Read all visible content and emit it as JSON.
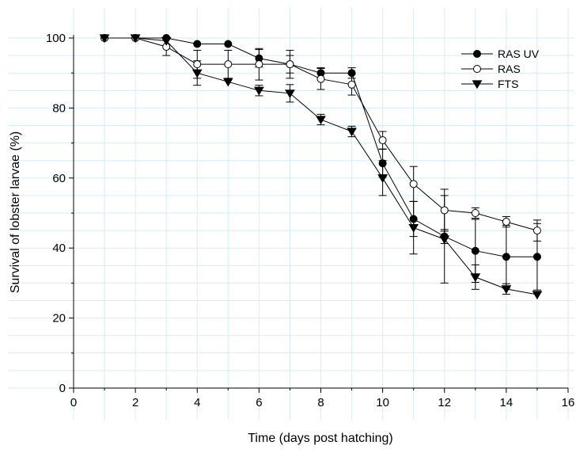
{
  "chart_data": {
    "type": "line",
    "title": "",
    "xlabel": "Time (days post hatching)",
    "ylabel": "Survival of lobster larvae (%)",
    "xlim": [
      0,
      16
    ],
    "ylim": [
      0,
      100
    ],
    "xticks": [
      0,
      2,
      4,
      6,
      8,
      10,
      12,
      14,
      16
    ],
    "yticks": [
      0,
      20,
      40,
      60,
      80,
      100
    ],
    "grid": true,
    "grid_color": "#d6ecf8",
    "legend_position": "top-right",
    "series": [
      {
        "name": "RAS UV",
        "marker": "filled-circle",
        "x": [
          1,
          2,
          3,
          4,
          5,
          6,
          7,
          8,
          9,
          10,
          11,
          12,
          13,
          14,
          15
        ],
        "y": [
          100,
          100,
          100,
          98.3,
          98.3,
          94.2,
          92.5,
          90,
          90,
          64.2,
          48.3,
          43.3,
          39.2,
          37.5,
          37.5
        ],
        "err": [
          0,
          0,
          0,
          0,
          0,
          2.5,
          2.5,
          1.5,
          1.5,
          4,
          5,
          2,
          9,
          9,
          9.5
        ]
      },
      {
        "name": "RAS",
        "marker": "open-circle",
        "x": [
          1,
          2,
          3,
          4,
          5,
          6,
          7,
          8,
          9,
          10,
          11,
          12,
          13,
          14,
          15
        ],
        "y": [
          100,
          100,
          97.5,
          92.5,
          92.5,
          92.5,
          92.5,
          88.3,
          86.7,
          70.8,
          58.3,
          50.8,
          50,
          47.5,
          45
        ],
        "err": [
          0,
          0,
          2.5,
          4,
          4,
          4.5,
          4,
          3,
          3,
          2.5,
          5,
          6,
          1.5,
          1.5,
          3
        ]
      },
      {
        "name": "FTS",
        "marker": "filled-triangle-down",
        "x": [
          1,
          2,
          3,
          4,
          5,
          6,
          7,
          8,
          9,
          10,
          11,
          12,
          13,
          14,
          15
        ],
        "y": [
          100,
          100,
          99.2,
          90,
          87.5,
          85,
          84.2,
          76.7,
          73.3,
          60,
          45.8,
          42.5,
          31.7,
          28.3,
          26.7
        ],
        "err": [
          0,
          0,
          0,
          3.5,
          0,
          1.5,
          2.5,
          1.5,
          1.5,
          5,
          7.5,
          12.5,
          3.5,
          1.5,
          0
        ]
      }
    ]
  }
}
